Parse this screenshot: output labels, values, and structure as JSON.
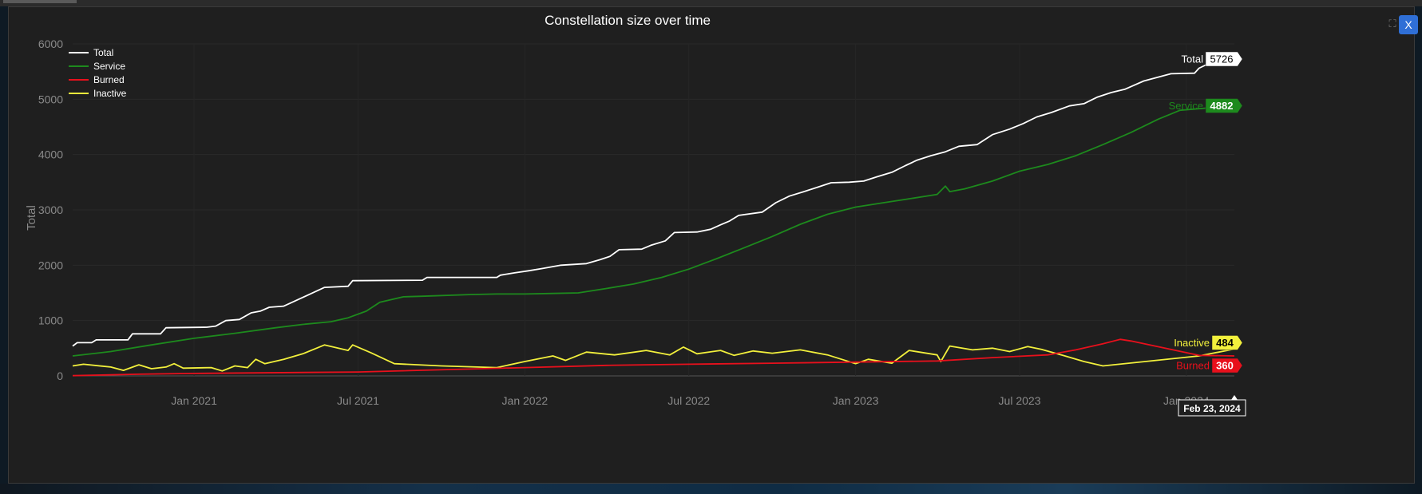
{
  "window": {
    "close_label": "X"
  },
  "chart_data": {
    "type": "line",
    "title": "Constellation size over time",
    "ylabel": "Total",
    "xlabel": "",
    "x_range": [
      "2020-08-20",
      "2024-02-23"
    ],
    "ylim": [
      0,
      6000
    ],
    "y_ticks": [
      0,
      1000,
      2000,
      3000,
      4000,
      5000,
      6000
    ],
    "x_ticks": [
      {
        "label": "Jan 2021",
        "date": "2021-01-01"
      },
      {
        "label": "Jul 2021",
        "date": "2021-07-01"
      },
      {
        "label": "Jan 2022",
        "date": "2022-01-01"
      },
      {
        "label": "Jul 2022",
        "date": "2022-07-01"
      },
      {
        "label": "Jan 2023",
        "date": "2023-01-01"
      },
      {
        "label": "Jul 2023",
        "date": "2023-07-01"
      },
      {
        "label": "Jan 2024",
        "date": "2024-01-01"
      }
    ],
    "legend_position": "top-left",
    "grid": true,
    "hover_date_label": "Feb 23, 2024",
    "series": [
      {
        "name": "Total",
        "color": "#ffffff",
        "end_value": "5726",
        "points": [
          [
            "2020-08-20",
            540
          ],
          [
            "2020-08-25",
            600
          ],
          [
            "2020-09-10",
            600
          ],
          [
            "2020-09-15",
            650
          ],
          [
            "2020-10-20",
            650
          ],
          [
            "2020-10-25",
            760
          ],
          [
            "2020-11-25",
            760
          ],
          [
            "2020-12-01",
            870
          ],
          [
            "2021-01-15",
            880
          ],
          [
            "2021-01-25",
            900
          ],
          [
            "2021-02-05",
            1000
          ],
          [
            "2021-02-20",
            1020
          ],
          [
            "2021-03-05",
            1140
          ],
          [
            "2021-03-15",
            1170
          ],
          [
            "2021-03-25",
            1240
          ],
          [
            "2021-04-10",
            1260
          ],
          [
            "2021-05-25",
            1600
          ],
          [
            "2021-06-20",
            1620
          ],
          [
            "2021-06-25",
            1720
          ],
          [
            "2021-09-10",
            1730
          ],
          [
            "2021-09-15",
            1780
          ],
          [
            "2021-12-01",
            1780
          ],
          [
            "2021-12-05",
            1820
          ],
          [
            "2021-12-20",
            1860
          ],
          [
            "2022-01-05",
            1900
          ],
          [
            "2022-01-20",
            1940
          ],
          [
            "2022-02-10",
            2000
          ],
          [
            "2022-03-10",
            2030
          ],
          [
            "2022-03-25",
            2100
          ],
          [
            "2022-04-05",
            2160
          ],
          [
            "2022-04-15",
            2280
          ],
          [
            "2022-05-10",
            2290
          ],
          [
            "2022-05-20",
            2360
          ],
          [
            "2022-06-05",
            2440
          ],
          [
            "2022-06-15",
            2590
          ],
          [
            "2022-07-10",
            2600
          ],
          [
            "2022-07-25",
            2650
          ],
          [
            "2022-08-05",
            2730
          ],
          [
            "2022-08-15",
            2800
          ],
          [
            "2022-08-25",
            2900
          ],
          [
            "2022-09-20",
            2960
          ],
          [
            "2022-10-05",
            3130
          ],
          [
            "2022-10-20",
            3250
          ],
          [
            "2022-11-05",
            3330
          ],
          [
            "2022-11-20",
            3410
          ],
          [
            "2022-12-05",
            3490
          ],
          [
            "2022-12-25",
            3500
          ],
          [
            "2023-01-10",
            3520
          ],
          [
            "2023-01-25",
            3600
          ],
          [
            "2023-02-10",
            3680
          ],
          [
            "2023-02-25",
            3800
          ],
          [
            "2023-03-10",
            3900
          ],
          [
            "2023-03-25",
            3980
          ],
          [
            "2023-04-10",
            4050
          ],
          [
            "2023-04-25",
            4150
          ],
          [
            "2023-05-15",
            4180
          ],
          [
            "2023-06-01",
            4360
          ],
          [
            "2023-06-20",
            4460
          ],
          [
            "2023-07-05",
            4560
          ],
          [
            "2023-07-20",
            4680
          ],
          [
            "2023-08-05",
            4760
          ],
          [
            "2023-08-25",
            4880
          ],
          [
            "2023-09-10",
            4920
          ],
          [
            "2023-09-25",
            5040
          ],
          [
            "2023-10-10",
            5120
          ],
          [
            "2023-10-25",
            5180
          ],
          [
            "2023-11-15",
            5330
          ],
          [
            "2023-12-15",
            5460
          ],
          [
            "2024-01-10",
            5470
          ],
          [
            "2024-01-15",
            5560
          ],
          [
            "2024-01-25",
            5640
          ],
          [
            "2024-02-23",
            5726
          ]
        ]
      },
      {
        "name": "Service",
        "color": "#1d8a1d",
        "end_value": "4882",
        "points": [
          [
            "2020-08-20",
            360
          ],
          [
            "2020-10-01",
            440
          ],
          [
            "2020-11-15",
            560
          ],
          [
            "2021-01-01",
            680
          ],
          [
            "2021-02-15",
            770
          ],
          [
            "2021-04-01",
            870
          ],
          [
            "2021-05-01",
            930
          ],
          [
            "2021-06-01",
            980
          ],
          [
            "2021-06-20",
            1050
          ],
          [
            "2021-07-10",
            1170
          ],
          [
            "2021-07-25",
            1330
          ],
          [
            "2021-08-20",
            1430
          ],
          [
            "2021-09-10",
            1440
          ],
          [
            "2021-11-01",
            1470
          ],
          [
            "2021-12-01",
            1480
          ],
          [
            "2022-01-01",
            1480
          ],
          [
            "2022-02-01",
            1490
          ],
          [
            "2022-03-01",
            1500
          ],
          [
            "2022-04-01",
            1580
          ],
          [
            "2022-05-01",
            1660
          ],
          [
            "2022-06-01",
            1780
          ],
          [
            "2022-07-01",
            1930
          ],
          [
            "2022-08-01",
            2120
          ],
          [
            "2022-09-01",
            2320
          ],
          [
            "2022-10-01",
            2520
          ],
          [
            "2022-11-01",
            2740
          ],
          [
            "2022-12-01",
            2920
          ],
          [
            "2023-01-01",
            3050
          ],
          [
            "2023-02-01",
            3130
          ],
          [
            "2023-03-01",
            3200
          ],
          [
            "2023-04-01",
            3280
          ],
          [
            "2023-04-10",
            3430
          ],
          [
            "2023-04-15",
            3330
          ],
          [
            "2023-05-01",
            3380
          ],
          [
            "2023-06-01",
            3520
          ],
          [
            "2023-07-01",
            3700
          ],
          [
            "2023-08-01",
            3820
          ],
          [
            "2023-09-01",
            3980
          ],
          [
            "2023-10-01",
            4180
          ],
          [
            "2023-11-01",
            4400
          ],
          [
            "2023-12-01",
            4640
          ],
          [
            "2023-12-25",
            4800
          ],
          [
            "2024-02-23",
            4882
          ]
        ]
      },
      {
        "name": "Burned",
        "color": "#e8101c",
        "end_value": "360",
        "points": [
          [
            "2020-08-20",
            5
          ],
          [
            "2020-11-01",
            30
          ],
          [
            "2021-01-01",
            45
          ],
          [
            "2021-07-01",
            70
          ],
          [
            "2022-01-01",
            150
          ],
          [
            "2022-04-01",
            190
          ],
          [
            "2022-07-01",
            210
          ],
          [
            "2022-10-01",
            230
          ],
          [
            "2023-01-01",
            250
          ],
          [
            "2023-04-01",
            270
          ],
          [
            "2023-06-01",
            330
          ],
          [
            "2023-08-01",
            380
          ],
          [
            "2023-09-01",
            470
          ],
          [
            "2023-10-01",
            580
          ],
          [
            "2023-10-20",
            660
          ],
          [
            "2023-11-01",
            630
          ],
          [
            "2024-01-15",
            370
          ],
          [
            "2024-02-23",
            360
          ]
        ]
      },
      {
        "name": "Inactive",
        "color": "#f2f03c",
        "end_value": "484",
        "points": [
          [
            "2020-08-20",
            180
          ],
          [
            "2020-09-01",
            210
          ],
          [
            "2020-10-01",
            160
          ],
          [
            "2020-10-15",
            100
          ],
          [
            "2020-11-01",
            200
          ],
          [
            "2020-11-15",
            130
          ],
          [
            "2020-12-01",
            160
          ],
          [
            "2020-12-10",
            220
          ],
          [
            "2020-12-20",
            140
          ],
          [
            "2021-01-20",
            150
          ],
          [
            "2021-02-01",
            90
          ],
          [
            "2021-02-15",
            180
          ],
          [
            "2021-03-01",
            150
          ],
          [
            "2021-03-10",
            300
          ],
          [
            "2021-03-20",
            220
          ],
          [
            "2021-04-10",
            300
          ],
          [
            "2021-05-01",
            400
          ],
          [
            "2021-05-25",
            560
          ],
          [
            "2021-06-20",
            460
          ],
          [
            "2021-06-25",
            560
          ],
          [
            "2021-07-15",
            420
          ],
          [
            "2021-08-10",
            220
          ],
          [
            "2021-10-01",
            180
          ],
          [
            "2021-12-01",
            150
          ],
          [
            "2022-01-01",
            260
          ],
          [
            "2022-02-01",
            360
          ],
          [
            "2022-02-15",
            280
          ],
          [
            "2022-03-10",
            430
          ],
          [
            "2022-04-10",
            380
          ],
          [
            "2022-05-15",
            460
          ],
          [
            "2022-06-10",
            380
          ],
          [
            "2022-06-25",
            520
          ],
          [
            "2022-07-10",
            400
          ],
          [
            "2022-08-05",
            460
          ],
          [
            "2022-08-20",
            370
          ],
          [
            "2022-09-10",
            450
          ],
          [
            "2022-10-01",
            410
          ],
          [
            "2022-11-01",
            470
          ],
          [
            "2022-12-01",
            380
          ],
          [
            "2023-01-01",
            220
          ],
          [
            "2023-01-15",
            300
          ],
          [
            "2023-02-10",
            230
          ],
          [
            "2023-03-01",
            460
          ],
          [
            "2023-04-01",
            380
          ],
          [
            "2023-04-05",
            260
          ],
          [
            "2023-04-15",
            540
          ],
          [
            "2023-05-10",
            470
          ],
          [
            "2023-06-01",
            500
          ],
          [
            "2023-06-20",
            440
          ],
          [
            "2023-07-10",
            530
          ],
          [
            "2023-07-25",
            480
          ],
          [
            "2023-08-20",
            360
          ],
          [
            "2023-09-10",
            260
          ],
          [
            "2023-10-01",
            180
          ],
          [
            "2024-01-15",
            360
          ],
          [
            "2024-02-23",
            484
          ]
        ]
      }
    ]
  }
}
